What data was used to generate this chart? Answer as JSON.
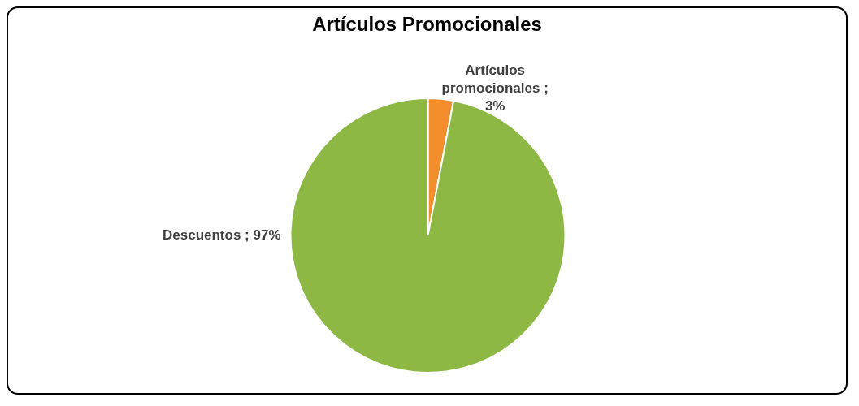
{
  "chart_data": {
    "type": "pie",
    "title": "Artículos Promocionales",
    "categories": [
      "Artículos promocionales",
      "Descuentos"
    ],
    "values": [
      3,
      97
    ],
    "colors": [
      "#f28e2b",
      "#8db843"
    ],
    "value_labels": [
      "; 3%",
      "; 97%"
    ],
    "legend": false
  }
}
